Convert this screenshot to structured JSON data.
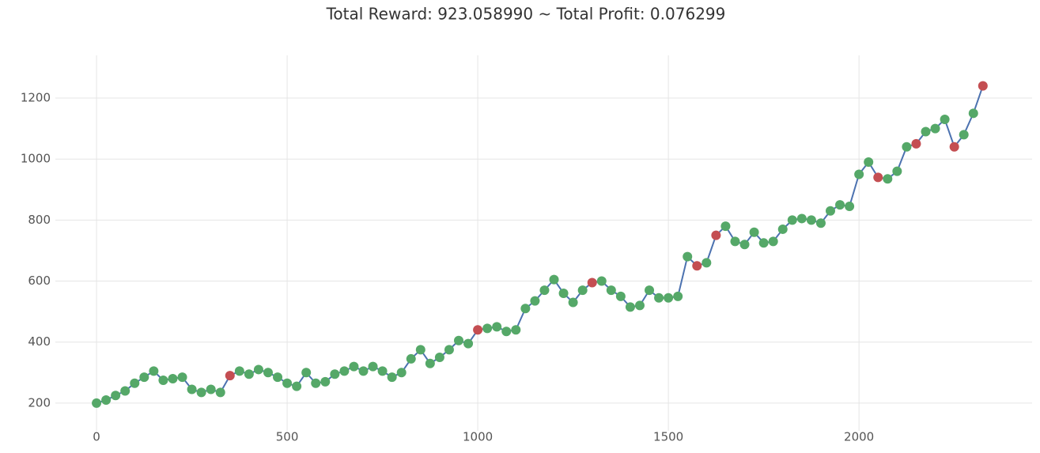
{
  "chart_data": {
    "type": "line",
    "title": "Total Reward: 923.058990 ~ Total Profit: 0.076299",
    "x": [
      0,
      25,
      50,
      75,
      100,
      125,
      150,
      175,
      200,
      225,
      250,
      275,
      300,
      325,
      350,
      375,
      400,
      425,
      450,
      475,
      500,
      525,
      550,
      575,
      600,
      625,
      650,
      675,
      700,
      725,
      750,
      775,
      800,
      825,
      850,
      875,
      900,
      925,
      950,
      975,
      1000,
      1025,
      1050,
      1075,
      1100,
      1125,
      1150,
      1175,
      1200,
      1225,
      1250,
      1275,
      1300,
      1325,
      1350,
      1375,
      1400,
      1425,
      1450,
      1475,
      1500,
      1525,
      1550,
      1575,
      1600,
      1625,
      1650,
      1675,
      1700,
      1725,
      1750,
      1775,
      1800,
      1825,
      1850,
      1875,
      1900,
      1925,
      1950,
      1975,
      2000,
      2025,
      2050,
      2075,
      2100,
      2125,
      2150,
      2175,
      2200,
      2225,
      2250,
      2275,
      2300,
      2325
    ],
    "series": [
      {
        "type": "line",
        "color": "#4c72b0",
        "values": [
          200,
          210,
          225,
          240,
          265,
          285,
          305,
          275,
          280,
          285,
          245,
          235,
          245,
          235,
          290,
          305,
          295,
          310,
          300,
          285,
          265,
          255,
          300,
          265,
          270,
          295,
          305,
          320,
          305,
          320,
          305,
          285,
          300,
          345,
          375,
          330,
          350,
          375,
          405,
          395,
          440,
          445,
          450,
          435,
          440,
          510,
          535,
          570,
          605,
          560,
          530,
          570,
          595,
          600,
          570,
          550,
          515,
          520,
          570,
          545,
          545,
          550,
          680,
          650,
          660,
          750,
          780,
          730,
          720,
          760,
          725,
          730,
          770,
          800,
          805,
          800,
          790,
          830,
          850,
          845,
          950,
          990,
          940,
          935,
          960,
          1040,
          1050,
          1090,
          1100,
          1130,
          1040,
          1080,
          1150,
          1240
        ]
      },
      {
        "type": "scatter",
        "color": "#55a868",
        "values": [
          200,
          210,
          225,
          240,
          265,
          285,
          305,
          275,
          280,
          285,
          245,
          235,
          245,
          235,
          null,
          305,
          295,
          310,
          300,
          285,
          265,
          255,
          300,
          265,
          270,
          295,
          305,
          320,
          305,
          320,
          305,
          285,
          300,
          345,
          375,
          330,
          350,
          375,
          405,
          395,
          null,
          445,
          450,
          435,
          440,
          510,
          535,
          570,
          605,
          560,
          530,
          570,
          null,
          600,
          570,
          550,
          515,
          520,
          570,
          545,
          545,
          550,
          680,
          null,
          660,
          null,
          780,
          730,
          720,
          760,
          725,
          730,
          770,
          800,
          805,
          800,
          790,
          830,
          850,
          845,
          950,
          990,
          null,
          935,
          960,
          1040,
          null,
          1090,
          1100,
          1130,
          null,
          1080,
          1150,
          null
        ]
      },
      {
        "type": "scatter",
        "color": "#c44e52",
        "values": [
          null,
          null,
          null,
          null,
          null,
          null,
          null,
          null,
          null,
          null,
          null,
          null,
          null,
          null,
          290,
          null,
          null,
          null,
          null,
          null,
          null,
          null,
          null,
          null,
          null,
          null,
          null,
          null,
          null,
          null,
          null,
          null,
          null,
          null,
          null,
          null,
          null,
          null,
          null,
          null,
          440,
          null,
          null,
          null,
          null,
          null,
          null,
          null,
          null,
          null,
          null,
          null,
          595,
          null,
          null,
          null,
          null,
          null,
          null,
          null,
          null,
          null,
          null,
          650,
          null,
          750,
          null,
          null,
          null,
          null,
          null,
          null,
          null,
          null,
          null,
          null,
          null,
          null,
          null,
          null,
          null,
          null,
          940,
          null,
          null,
          null,
          1050,
          null,
          null,
          null,
          1040,
          null,
          null,
          1240
        ]
      }
    ],
    "xlim": [
      -108,
      2454
    ],
    "ylim": [
      109,
      1340
    ],
    "xticks": [
      0,
      500,
      1000,
      1500,
      2000
    ],
    "yticks": [
      200,
      400,
      600,
      800,
      1000,
      1200
    ],
    "grid": true
  }
}
